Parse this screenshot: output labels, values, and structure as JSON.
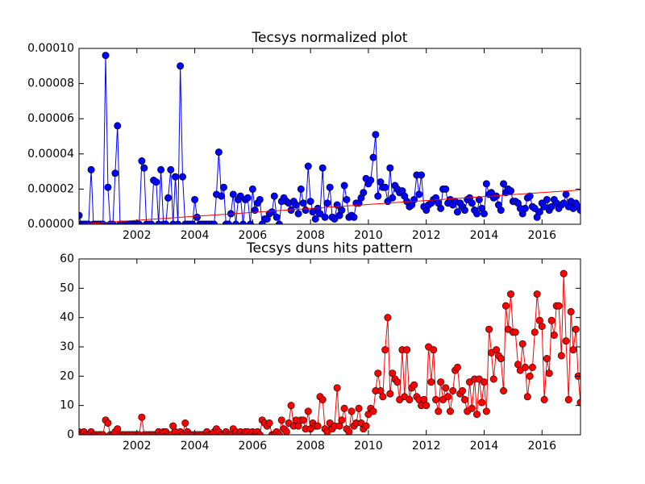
{
  "chart_data": [
    {
      "type": "line",
      "title": "Tecsys normalized plot",
      "xlim": [
        2000,
        2017.33
      ],
      "xticks": [
        2002,
        2004,
        2006,
        2008,
        2010,
        2012,
        2014,
        2016
      ],
      "ylim": [
        0,
        0.0001
      ],
      "yticks": [
        {
          "value": 0,
          "label": "0.00000"
        },
        {
          "value": 2e-05,
          "label": "0.00002"
        },
        {
          "value": 4e-05,
          "label": "0.00004"
        },
        {
          "value": 6e-05,
          "label": "0.00006"
        },
        {
          "value": 8e-05,
          "label": "0.00008"
        },
        {
          "value": 0.0001,
          "label": "0.00010"
        }
      ],
      "grid": false,
      "x": [
        2000,
        2000.08,
        2000.17,
        2000.25,
        2000.33,
        2000.42,
        2000.5,
        2000.58,
        2000.67,
        2000.75,
        2000.83,
        2000.92,
        2001,
        2001.08,
        2001.17,
        2001.25,
        2001.33,
        2001.42,
        2001.5,
        2001.58,
        2001.67,
        2001.75,
        2001.83,
        2001.92,
        2002,
        2002.08,
        2002.17,
        2002.25,
        2002.33,
        2002.42,
        2002.5,
        2002.58,
        2002.67,
        2002.75,
        2002.83,
        2002.92,
        2003,
        2003.08,
        2003.17,
        2003.25,
        2003.33,
        2003.42,
        2003.5,
        2003.58,
        2003.67,
        2003.75,
        2003.83,
        2003.92,
        2004,
        2004.08,
        2004.17,
        2004.25,
        2004.33,
        2004.42,
        2004.5,
        2004.58,
        2004.67,
        2004.75,
        2004.83,
        2004.92,
        2005,
        2005.08,
        2005.17,
        2005.25,
        2005.33,
        2005.42,
        2005.5,
        2005.58,
        2005.67,
        2005.75,
        2005.83,
        2005.92,
        2006,
        2006.08,
        2006.17,
        2006.25,
        2006.33,
        2006.42,
        2006.5,
        2006.58,
        2006.67,
        2006.75,
        2006.83,
        2006.92,
        2007,
        2007.08,
        2007.17,
        2007.25,
        2007.33,
        2007.42,
        2007.5,
        2007.58,
        2007.67,
        2007.75,
        2007.83,
        2007.92,
        2008,
        2008.08,
        2008.17,
        2008.25,
        2008.33,
        2008.42,
        2008.5,
        2008.58,
        2008.67,
        2008.75,
        2008.83,
        2008.92,
        2009,
        2009.08,
        2009.17,
        2009.25,
        2009.33,
        2009.42,
        2009.5,
        2009.58,
        2009.67,
        2009.75,
        2009.83,
        2009.92,
        2010,
        2010.08,
        2010.17,
        2010.25,
        2010.33,
        2010.42,
        2010.5,
        2010.58,
        2010.67,
        2010.75,
        2010.83,
        2010.92,
        2011,
        2011.08,
        2011.17,
        2011.25,
        2011.33,
        2011.42,
        2011.5,
        2011.58,
        2011.67,
        2011.75,
        2011.83,
        2011.92,
        2012,
        2012.08,
        2012.17,
        2012.25,
        2012.33,
        2012.42,
        2012.5,
        2012.58,
        2012.67,
        2012.75,
        2012.83,
        2012.92,
        2013,
        2013.08,
        2013.17,
        2013.25,
        2013.33,
        2013.42,
        2013.5,
        2013.58,
        2013.67,
        2013.75,
        2013.83,
        2013.92,
        2014,
        2014.08,
        2014.17,
        2014.25,
        2014.33,
        2014.42,
        2014.5,
        2014.58,
        2014.67,
        2014.75,
        2014.83,
        2014.92,
        2015,
        2015.08,
        2015.17,
        2015.25,
        2015.33,
        2015.42,
        2015.5,
        2015.58,
        2015.67,
        2015.75,
        2015.83,
        2015.92,
        2016,
        2016.08,
        2016.17,
        2016.25,
        2016.33,
        2016.42,
        2016.5,
        2016.58,
        2016.67,
        2016.75,
        2016.83,
        2016.92,
        2017,
        2017.08,
        2017.17,
        2017.25,
        2017.33
      ],
      "series": [
        {
          "color": "#0000ff",
          "values": [
            5e-06,
            0,
            0,
            0,
            0,
            3.1e-05,
            0,
            0,
            0,
            0,
            0,
            9.6e-05,
            2.1e-05,
            0,
            0,
            2.9e-05,
            5.6e-05,
            0,
            0,
            0,
            0,
            0,
            0,
            0,
            0,
            0,
            3.6e-05,
            3.2e-05,
            0,
            0,
            0,
            2.5e-05,
            2.4e-05,
            0,
            3.1e-05,
            0,
            0,
            1.5e-05,
            3.1e-05,
            0,
            2.7e-05,
            0,
            9e-05,
            2.7e-05,
            0,
            0,
            0,
            0,
            1.4e-05,
            4e-06,
            0,
            0,
            0,
            0,
            0,
            0,
            0,
            1.7e-05,
            4.1e-05,
            1.6e-05,
            2.1e-05,
            0,
            0,
            6e-06,
            1.7e-05,
            0,
            1.4e-05,
            1.6e-05,
            0,
            1.4e-05,
            1.5e-05,
            0,
            2e-05,
            8e-06,
            1.2e-05,
            1.4e-05,
            0,
            3e-06,
            3e-06,
            6e-06,
            7e-06,
            1.6e-05,
            4e-06,
            0,
            1.3e-05,
            1.5e-05,
            1.3e-05,
            1.2e-05,
            8e-06,
            1.3e-05,
            1.1e-05,
            6e-06,
            2e-05,
            1.2e-05,
            8e-06,
            3.3e-05,
            1.3e-05,
            7e-06,
            3e-06,
            9e-06,
            6e-06,
            3.2e-05,
            4e-06,
            1.2e-05,
            2.1e-05,
            4e-06,
            3e-06,
            1.1e-05,
            5e-06,
            8e-06,
            2.2e-05,
            1.4e-05,
            4e-06,
            5e-06,
            4e-06,
            1.2e-05,
            1.2e-05,
            1.5e-05,
            1.8e-05,
            2.6e-05,
            2.3e-05,
            2.5e-05,
            3.8e-05,
            5.1e-05,
            1.6e-05,
            2.4e-05,
            2.1e-05,
            2.1e-05,
            1.3e-05,
            3.2e-05,
            1.5e-05,
            2.2e-05,
            2e-05,
            1.8e-05,
            1.9e-05,
            1.6e-05,
            1.3e-05,
            1e-05,
            1.1e-05,
            1.4e-05,
            2.8e-05,
            1.7e-05,
            2.8e-05,
            1e-05,
            8e-06,
            1.1e-05,
            1.2e-05,
            1.4e-05,
            1.5e-05,
            1.2e-05,
            9e-06,
            2e-05,
            2e-05,
            1.2e-05,
            1.4e-05,
            1.1e-05,
            1.3e-05,
            7e-06,
            1.2e-05,
            1e-05,
            8e-06,
            1.4e-05,
            1.5e-05,
            1.2e-05,
            8e-06,
            6e-06,
            1.4e-05,
            9e-06,
            6e-06,
            2.3e-05,
            1.7e-05,
            1.8e-05,
            1.5e-05,
            1.6e-05,
            1.1e-05,
            8e-06,
            2.3e-05,
            1.8e-05,
            2e-05,
            1.9e-05,
            1.3e-05,
            1.3e-05,
            1.2e-05,
            9e-06,
            6e-06,
            9e-06,
            1.5e-05,
            1.6e-05,
            1e-05,
            9e-06,
            4e-06,
            7e-06,
            1.2e-05,
            1e-05,
            1.4e-05,
            8e-06,
            1e-05,
            1.4e-05,
            1.2e-05,
            9e-06,
            1.1e-05,
            1.2e-05,
            1.7e-05,
            1e-05,
            1.3e-05,
            9e-06,
            1.2e-05,
            1e-05,
            8e-06
          ]
        }
      ],
      "trend_line": {
        "color": "#ff0000",
        "x": [
          2000,
          2017.33
        ],
        "values": [
          0,
          1.95e-05
        ]
      }
    },
    {
      "type": "line",
      "title": "Tecsys duns hits pattern",
      "xlim": [
        2000,
        2017.33
      ],
      "xticks": [
        2002,
        2004,
        2006,
        2008,
        2010,
        2012,
        2014,
        2016
      ],
      "ylim": [
        0,
        60
      ],
      "yticks": [
        0,
        10,
        20,
        30,
        40,
        50,
        60
      ],
      "grid": false,
      "x": [
        2000,
        2000.08,
        2000.17,
        2000.25,
        2000.33,
        2000.42,
        2000.5,
        2000.58,
        2000.67,
        2000.75,
        2000.83,
        2000.92,
        2001,
        2001.08,
        2001.17,
        2001.25,
        2001.33,
        2001.42,
        2001.5,
        2001.58,
        2001.67,
        2001.75,
        2001.83,
        2001.92,
        2002,
        2002.08,
        2002.17,
        2002.25,
        2002.33,
        2002.42,
        2002.5,
        2002.58,
        2002.67,
        2002.75,
        2002.83,
        2002.92,
        2003,
        2003.08,
        2003.17,
        2003.25,
        2003.33,
        2003.42,
        2003.5,
        2003.58,
        2003.67,
        2003.75,
        2003.83,
        2003.92,
        2004,
        2004.08,
        2004.17,
        2004.25,
        2004.33,
        2004.42,
        2004.5,
        2004.58,
        2004.67,
        2004.75,
        2004.83,
        2004.92,
        2005,
        2005.08,
        2005.17,
        2005.25,
        2005.33,
        2005.42,
        2005.5,
        2005.58,
        2005.67,
        2005.75,
        2005.83,
        2005.92,
        2006,
        2006.08,
        2006.17,
        2006.25,
        2006.33,
        2006.42,
        2006.5,
        2006.58,
        2006.67,
        2006.75,
        2006.83,
        2006.92,
        2007,
        2007.08,
        2007.17,
        2007.25,
        2007.33,
        2007.42,
        2007.5,
        2007.58,
        2007.67,
        2007.75,
        2007.83,
        2007.92,
        2008,
        2008.08,
        2008.17,
        2008.25,
        2008.33,
        2008.42,
        2008.5,
        2008.58,
        2008.67,
        2008.75,
        2008.83,
        2008.92,
        2009,
        2009.08,
        2009.17,
        2009.25,
        2009.33,
        2009.42,
        2009.5,
        2009.58,
        2009.67,
        2009.75,
        2009.83,
        2009.92,
        2010,
        2010.08,
        2010.17,
        2010.25,
        2010.33,
        2010.42,
        2010.5,
        2010.58,
        2010.67,
        2010.75,
        2010.83,
        2010.92,
        2011,
        2011.08,
        2011.17,
        2011.25,
        2011.33,
        2011.42,
        2011.5,
        2011.58,
        2011.67,
        2011.75,
        2011.83,
        2011.92,
        2012,
        2012.08,
        2012.17,
        2012.25,
        2012.33,
        2012.42,
        2012.5,
        2012.58,
        2012.67,
        2012.75,
        2012.83,
        2012.92,
        2013,
        2013.08,
        2013.17,
        2013.25,
        2013.33,
        2013.42,
        2013.5,
        2013.58,
        2013.67,
        2013.75,
        2013.83,
        2013.92,
        2014,
        2014.08,
        2014.17,
        2014.25,
        2014.33,
        2014.42,
        2014.5,
        2014.58,
        2014.67,
        2014.75,
        2014.83,
        2014.92,
        2015,
        2015.08,
        2015.17,
        2015.25,
        2015.33,
        2015.42,
        2015.5,
        2015.58,
        2015.67,
        2015.75,
        2015.83,
        2015.92,
        2016,
        2016.08,
        2016.17,
        2016.25,
        2016.33,
        2016.42,
        2016.5,
        2016.58,
        2016.67,
        2016.75,
        2016.83,
        2016.92,
        2017,
        2017.08,
        2017.17,
        2017.25,
        2017.33
      ],
      "series": [
        {
          "color": "#ff0000",
          "values": [
            1,
            0,
            1,
            0,
            0,
            1,
            0,
            0,
            0,
            0,
            0,
            5,
            4,
            0,
            0,
            1,
            2,
            0,
            0,
            0,
            0,
            0,
            0,
            0,
            0,
            0,
            6,
            0,
            0,
            0,
            0,
            0,
            0,
            1,
            0,
            1,
            1,
            0,
            0,
            3,
            1,
            0,
            1,
            0,
            4,
            1,
            0,
            0,
            0,
            0,
            0,
            0,
            0,
            1,
            0,
            0,
            1,
            2,
            1,
            0,
            0,
            1,
            0,
            0,
            2,
            1,
            0,
            1,
            0,
            1,
            1,
            0,
            1,
            0,
            1,
            0,
            5,
            4,
            3,
            4,
            0,
            0,
            1,
            0,
            5,
            2,
            1,
            4,
            10,
            3,
            5,
            3,
            5,
            5,
            2,
            8,
            2,
            4,
            3,
            3,
            13,
            12,
            2,
            1,
            4,
            2,
            3,
            16,
            3,
            5,
            9,
            2,
            1,
            8,
            3,
            4,
            9,
            4,
            2,
            3,
            7,
            9,
            8,
            15,
            21,
            15,
            13,
            29,
            40,
            14,
            21,
            19,
            18,
            12,
            29,
            13,
            29,
            12,
            16,
            17,
            13,
            12,
            10,
            12,
            10,
            30,
            18,
            29,
            12,
            8,
            18,
            12,
            16,
            13,
            8,
            15,
            22,
            23,
            14,
            15,
            12,
            8,
            18,
            9,
            19,
            7,
            19,
            11,
            18,
            8,
            36,
            28,
            19,
            29,
            27,
            26,
            15,
            44,
            36,
            48,
            35,
            35,
            24,
            22,
            31,
            23,
            13,
            20,
            23,
            35,
            48,
            39,
            37,
            12,
            26,
            21,
            39,
            34,
            44,
            44,
            27,
            55,
            32,
            12,
            42,
            29,
            36,
            20,
            11
          ]
        }
      ]
    }
  ]
}
